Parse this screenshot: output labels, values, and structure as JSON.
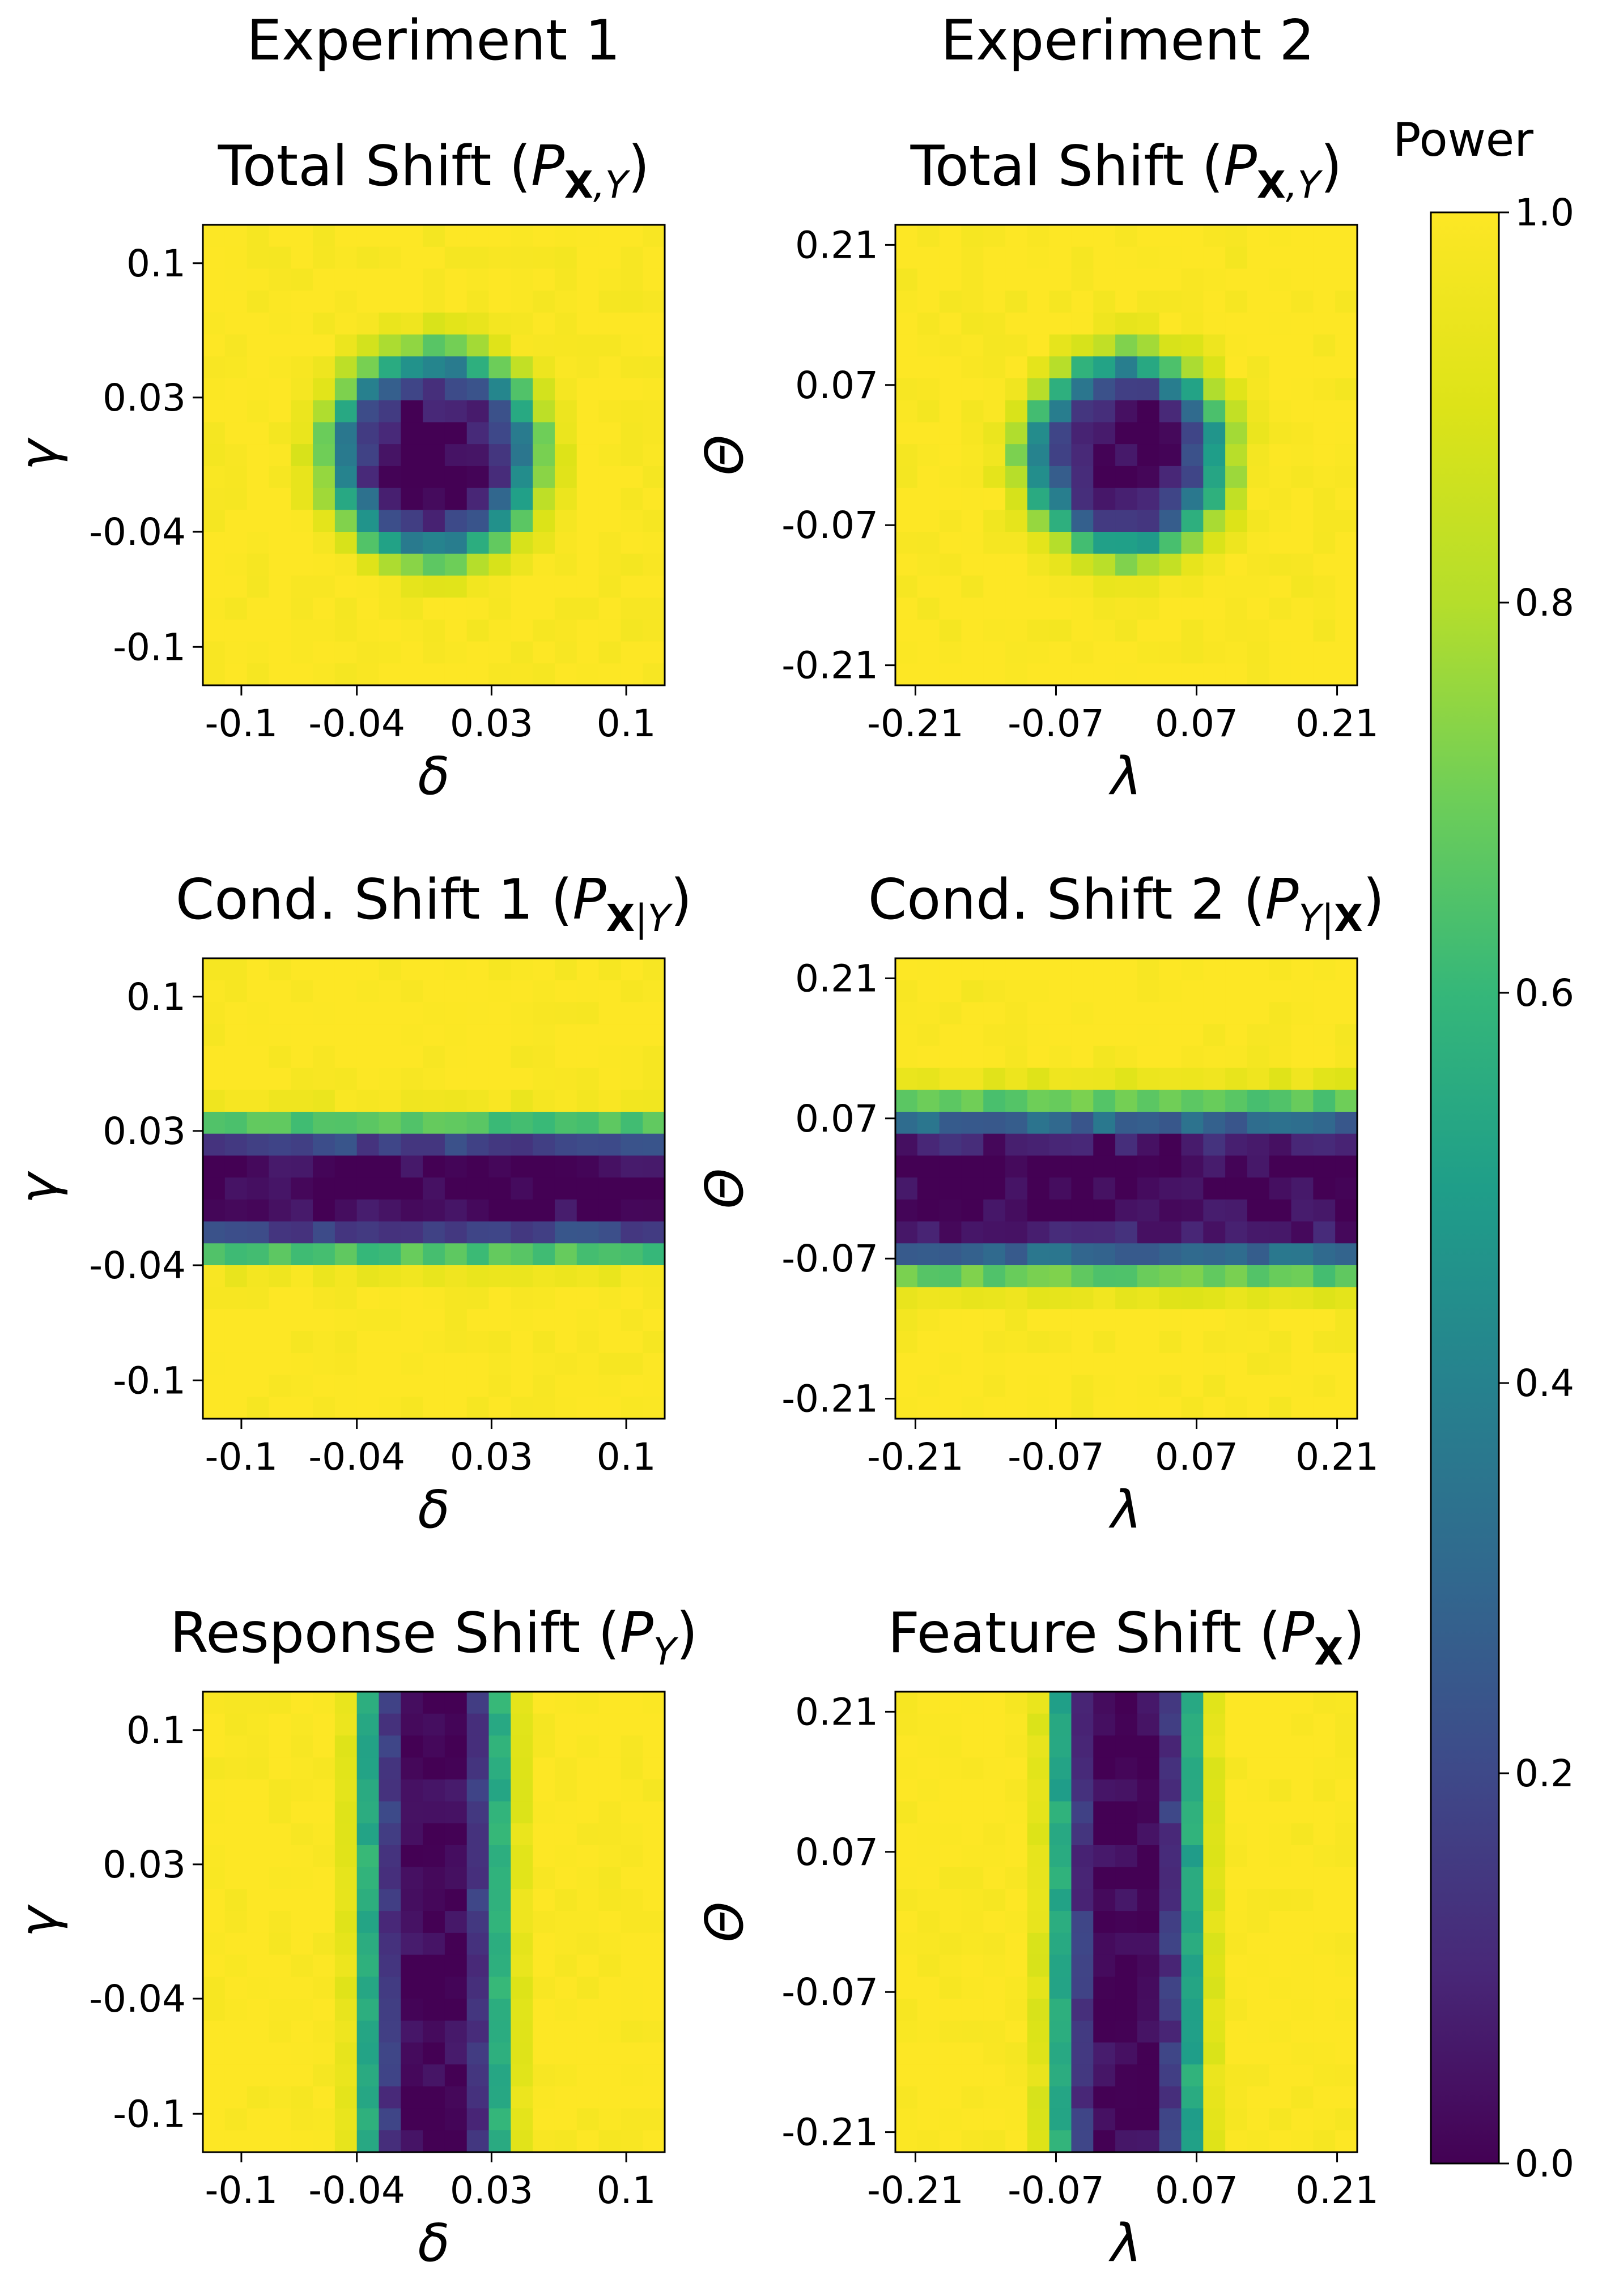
{
  "figure": {
    "column_titles": [
      "Experiment 1",
      "Experiment 2"
    ],
    "colorbar": {
      "label": "Power",
      "colormap": "viridis",
      "range": [
        0,
        1
      ],
      "ticks": [
        "0.0",
        "0.2",
        "0.4",
        "0.6",
        "0.8",
        "1.0"
      ],
      "tick_values": [
        0,
        0.2,
        0.4,
        0.6,
        0.8,
        1.0
      ]
    }
  },
  "chart_data": [
    {
      "type": "heatmap",
      "title": "Total Shift (P_{X,Y})",
      "title_parts": {
        "text": "Total Shift (",
        "var": "P",
        "sub_bold": "X",
        "sub_rest": ",Y",
        "close": ")"
      },
      "xlabel": "δ",
      "ylabel": "γ",
      "xlim": [
        -0.12,
        0.12
      ],
      "ylim": [
        -0.12,
        0.12
      ],
      "xticks": [
        -0.1,
        -0.04,
        0.03,
        0.1
      ],
      "xtick_labels": [
        "-0.1",
        "-0.04",
        "0.03",
        "0.1"
      ],
      "yticks": [
        -0.1,
        -0.04,
        0.03,
        0.1
      ],
      "ytick_labels": [
        "-0.1",
        "-0.04",
        "0.03",
        "0.1"
      ],
      "grid_size": [
        21,
        21
      ],
      "pattern": {
        "kind": "radial",
        "center": [
          0,
          0
        ],
        "width": 0.055,
        "noise": 0.07
      }
    },
    {
      "type": "heatmap",
      "title": "Total Shift (P_{X,Y})",
      "title_parts": {
        "text": "Total Shift (",
        "var": "P",
        "sub_bold": "X",
        "sub_rest": ",Y",
        "close": ")"
      },
      "xlabel": "λ",
      "ylabel": "Θ",
      "xlim": [
        -0.23,
        0.23
      ],
      "ylim": [
        -0.23,
        0.23
      ],
      "xticks": [
        -0.21,
        -0.07,
        0.07,
        0.21
      ],
      "xtick_labels": [
        "-0.21",
        "-0.07",
        "0.07",
        "0.21"
      ],
      "yticks": [
        -0.21,
        -0.07,
        0.07,
        0.21
      ],
      "ytick_labels": [
        "-0.21",
        "-0.07",
        "0.07",
        "0.21"
      ],
      "grid_size": [
        21,
        21
      ],
      "pattern": {
        "kind": "radial",
        "center": [
          0,
          0
        ],
        "width": 0.1,
        "noise": 0.07
      }
    },
    {
      "type": "heatmap",
      "title": "Cond. Shift 1 (P_{X|Y})",
      "title_parts": {
        "text": "Cond. Shift 1 (",
        "var": "P",
        "sub_bold": "X",
        "sub_rest": "|Y",
        "close": ")"
      },
      "xlabel": "δ",
      "ylabel": "γ",
      "xlim": [
        -0.12,
        0.12
      ],
      "ylim": [
        -0.12,
        0.12
      ],
      "xticks": [
        -0.1,
        -0.04,
        0.03,
        0.1
      ],
      "xtick_labels": [
        "-0.1",
        "-0.04",
        "0.03",
        "0.1"
      ],
      "yticks": [
        -0.1,
        -0.04,
        0.03,
        0.1
      ],
      "ytick_labels": [
        "-0.1",
        "-0.04",
        "0.03",
        "0.1"
      ],
      "grid_size": [
        21,
        21
      ],
      "pattern": {
        "kind": "horizontal-band",
        "center": 0,
        "width": 0.034,
        "noise": 0.06
      }
    },
    {
      "type": "heatmap",
      "title": "Cond. Shift 2 (P_{Y|X})",
      "title_parts": {
        "text": "Cond. Shift 2 (",
        "var": "P",
        "sub_bold": "",
        "sub_rest": "Y|",
        "sub_bold_after": "X",
        "close": ")"
      },
      "xlabel": "λ",
      "ylabel": "Θ",
      "xlim": [
        -0.23,
        0.23
      ],
      "ylim": [
        -0.23,
        0.23
      ],
      "xticks": [
        -0.21,
        -0.07,
        0.07,
        0.21
      ],
      "xtick_labels": [
        "-0.21",
        "-0.07",
        "0.07",
        "0.21"
      ],
      "yticks": [
        -0.21,
        -0.07,
        0.07,
        0.21
      ],
      "ytick_labels": [
        "-0.21",
        "-0.07",
        "0.07",
        "0.21"
      ],
      "grid_size": [
        21,
        21
      ],
      "pattern": {
        "kind": "horizontal-band",
        "center": 0,
        "width": 0.085,
        "noise": 0.07
      }
    },
    {
      "type": "heatmap",
      "title": "Response Shift (P_Y)",
      "title_parts": {
        "text": "Response Shift (",
        "var": "P",
        "sub_bold": "",
        "sub_rest": "Y",
        "close": ")"
      },
      "xlabel": "δ",
      "ylabel": "γ",
      "xlim": [
        -0.12,
        0.12
      ],
      "ylim": [
        -0.12,
        0.12
      ],
      "xticks": [
        -0.1,
        -0.04,
        0.03,
        0.1
      ],
      "xtick_labels": [
        "-0.1",
        "-0.04",
        "0.03",
        "0.1"
      ],
      "yticks": [
        -0.1,
        -0.04,
        0.03,
        0.1
      ],
      "ytick_labels": [
        "-0.1",
        "-0.04",
        "0.03",
        "0.1"
      ],
      "grid_size": [
        21,
        21
      ],
      "pattern": {
        "kind": "vertical-band",
        "center": 0,
        "width": 0.036,
        "noise": 0.06
      }
    },
    {
      "type": "heatmap",
      "title": "Feature Shift (P_X)",
      "title_parts": {
        "text": "Feature Shift (",
        "var": "P",
        "sub_bold": "X",
        "sub_rest": "",
        "close": ")"
      },
      "xlabel": "λ",
      "ylabel": "Θ",
      "xlim": [
        -0.23,
        0.23
      ],
      "ylim": [
        -0.23,
        0.23
      ],
      "xticks": [
        -0.21,
        -0.07,
        0.07,
        0.21
      ],
      "xtick_labels": [
        "-0.21",
        "-0.07",
        "0.07",
        "0.21"
      ],
      "yticks": [
        -0.21,
        -0.07,
        0.07,
        0.21
      ],
      "ytick_labels": [
        "-0.21",
        "-0.07",
        "0.07",
        "0.21"
      ],
      "grid_size": [
        21,
        21
      ],
      "pattern": {
        "kind": "vertical-band",
        "center": 0,
        "width": 0.07,
        "noise": 0.06
      }
    }
  ]
}
